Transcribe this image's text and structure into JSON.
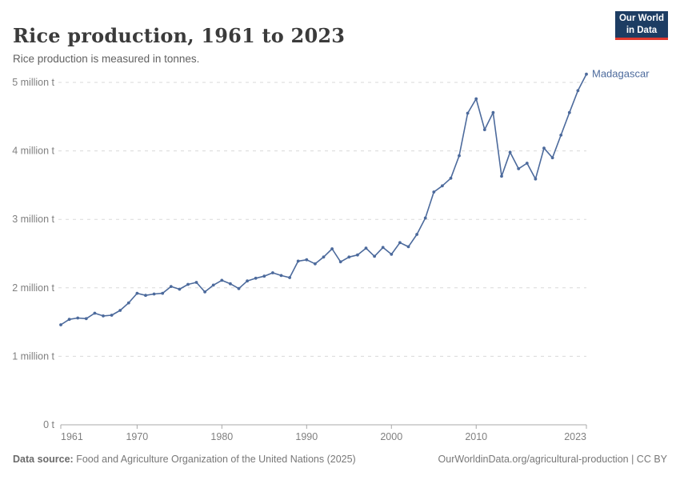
{
  "header": {
    "title": "Rice production, 1961 to 2023",
    "subtitle": "Rice production is measured in tonnes."
  },
  "logo": {
    "line1": "Our World",
    "line2": "in Data",
    "bg_color": "#1d3d63",
    "accent_color": "#e0392e"
  },
  "chart_data": {
    "type": "line",
    "title": "Rice production, 1961 to 2023",
    "unit": "tonnes",
    "xlabel": "",
    "ylabel": "",
    "xlim": [
      1961,
      2023
    ],
    "ylim": [
      0,
      5000000
    ],
    "grid": "horizontal-dashed",
    "x_ticks": [
      1961,
      1970,
      1980,
      1990,
      2000,
      2010,
      2023
    ],
    "y_ticks": [
      {
        "value": 0,
        "label": "0 t"
      },
      {
        "value": 1000000,
        "label": "1 million t"
      },
      {
        "value": 2000000,
        "label": "2 million t"
      },
      {
        "value": 3000000,
        "label": "3 million t"
      },
      {
        "value": 4000000,
        "label": "4 million t"
      },
      {
        "value": 5000000,
        "label": "5 million t"
      }
    ],
    "series": [
      {
        "name": "Madagascar",
        "color": "#4c6a9c",
        "x": [
          1961,
          1962,
          1963,
          1964,
          1965,
          1966,
          1967,
          1968,
          1969,
          1970,
          1971,
          1972,
          1973,
          1974,
          1975,
          1976,
          1977,
          1978,
          1979,
          1980,
          1981,
          1982,
          1983,
          1984,
          1985,
          1986,
          1987,
          1988,
          1989,
          1990,
          1991,
          1992,
          1993,
          1994,
          1995,
          1996,
          1997,
          1998,
          1999,
          2000,
          2001,
          2002,
          2003,
          2004,
          2005,
          2006,
          2007,
          2008,
          2009,
          2010,
          2011,
          2012,
          2013,
          2014,
          2015,
          2016,
          2017,
          2018,
          2019,
          2020,
          2021,
          2022,
          2023
        ],
        "values": [
          1460000,
          1540000,
          1560000,
          1550000,
          1630000,
          1590000,
          1600000,
          1670000,
          1780000,
          1920000,
          1890000,
          1910000,
          1920000,
          2020000,
          1980000,
          2050000,
          2080000,
          1940000,
          2040000,
          2110000,
          2060000,
          1990000,
          2100000,
          2140000,
          2170000,
          2220000,
          2180000,
          2150000,
          2390000,
          2410000,
          2350000,
          2450000,
          2570000,
          2380000,
          2450000,
          2480000,
          2580000,
          2460000,
          2590000,
          2490000,
          2660000,
          2600000,
          2780000,
          3020000,
          3400000,
          3490000,
          3600000,
          3930000,
          4550000,
          4760000,
          4310000,
          4560000,
          3630000,
          3980000,
          3740000,
          3820000,
          3590000,
          4040000,
          3900000,
          4230000,
          4560000,
          4880000,
          5120000
        ]
      }
    ],
    "entity_label": "Madagascar",
    "legend_position": "end-of-line"
  },
  "footer": {
    "source_label": "Data source:",
    "source_text": " Food and Agriculture Organization of the United Nations (2025)",
    "rights_text": "OurWorldinData.org/agricultural-production | CC BY"
  },
  "colors": {
    "line": "#4c6a9c",
    "grid": "#dadada",
    "axis": "#a8a8a8",
    "tick_label": "#808080",
    "title": "#3b3b3b"
  }
}
